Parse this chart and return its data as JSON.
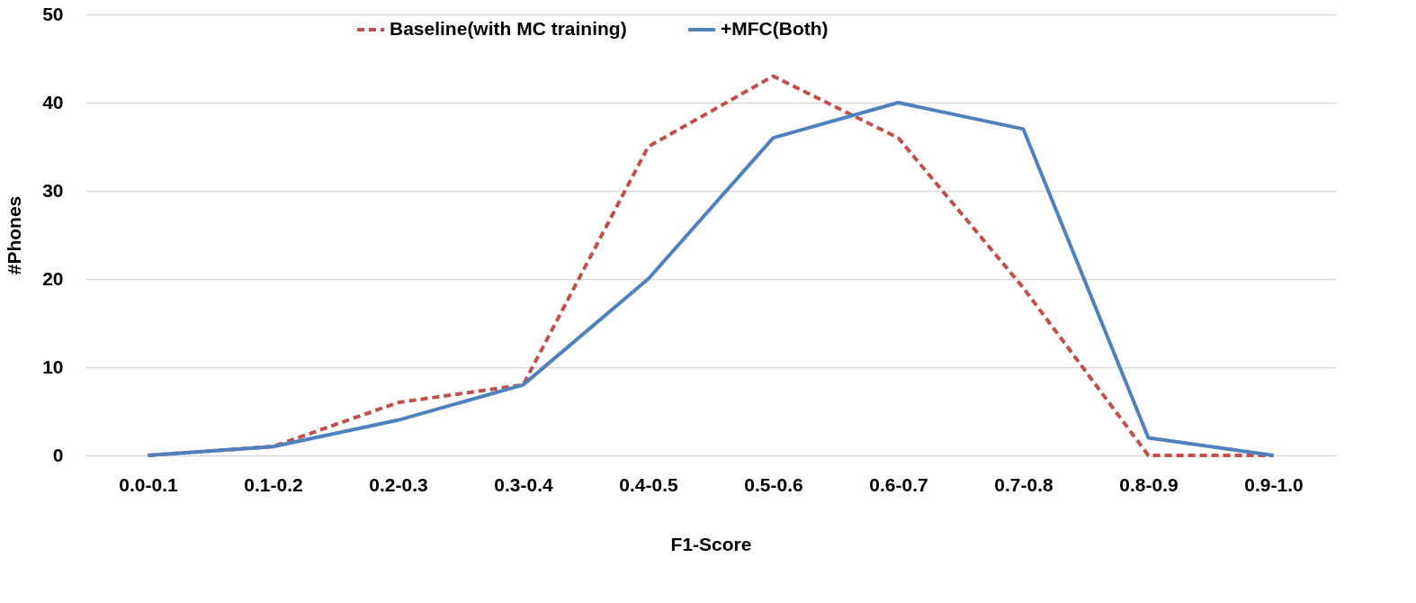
{
  "chart_data": {
    "type": "line",
    "xlabel": "F1-Score",
    "ylabel": "#Phones",
    "categories": [
      "0.0-0.1",
      "0.1-0.2",
      "0.2-0.3",
      "0.3-0.4",
      "0.4-0.5",
      "0.5-0.6",
      "0.6-0.7",
      "0.7-0.8",
      "0.8-0.9",
      "0.9-1.0"
    ],
    "series": [
      {
        "name": "Baseline(with MC training)",
        "color": "#c0504d",
        "line_style": "dashed",
        "values": [
          0,
          1,
          6,
          8,
          35,
          43,
          36,
          19,
          0,
          0
        ]
      },
      {
        "name": "+MFC(Both)",
        "color": "#4f81bd",
        "line_style": "solid",
        "values": [
          0,
          1,
          4,
          8,
          20,
          36,
          40,
          37,
          2,
          0
        ]
      }
    ],
    "ylim": [
      0,
      50
    ],
    "yticks": [
      0,
      10,
      20,
      30,
      40,
      50
    ],
    "grid": "y",
    "legend": "top",
    "marker": "none"
  }
}
